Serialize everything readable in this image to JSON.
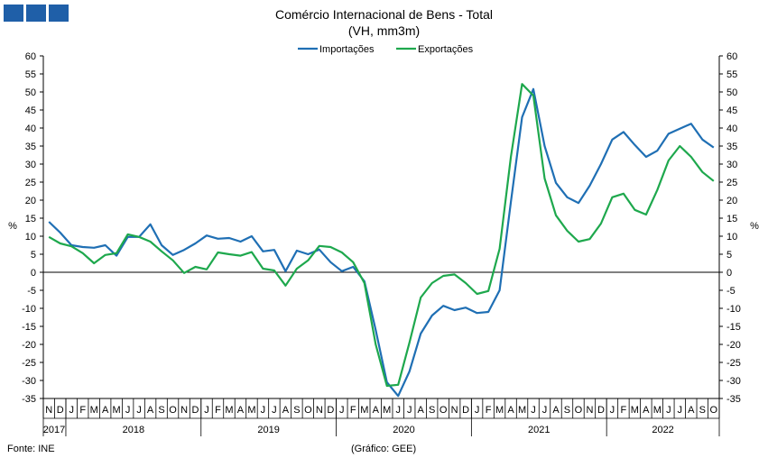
{
  "logo": {
    "color": "#1f5fa8"
  },
  "chart_data": {
    "type": "line",
    "title": "Comércio Internacional de Bens - Total",
    "subtitle": "(VH, mm3m)",
    "ylabel_left": "%",
    "ylabel_right": "%",
    "ylim": [
      -35,
      60
    ],
    "yticks": [
      60,
      55,
      50,
      45,
      40,
      35,
      30,
      25,
      20,
      15,
      10,
      5,
      0,
      -5,
      -10,
      -15,
      -20,
      -25,
      -30,
      -35
    ],
    "month_labels": [
      "N",
      "D",
      "J",
      "F",
      "M",
      "A",
      "M",
      "J",
      "J",
      "A",
      "S",
      "O",
      "N",
      "D",
      "J",
      "F",
      "M",
      "A",
      "M",
      "J",
      "J",
      "A",
      "S",
      "O",
      "N",
      "D",
      "J",
      "F",
      "M",
      "A",
      "M",
      "J",
      "J",
      "A",
      "S",
      "O",
      "N",
      "D",
      "J",
      "F",
      "M",
      "A",
      "M",
      "J",
      "J",
      "A",
      "S",
      "O",
      "N",
      "D",
      "J",
      "F",
      "M",
      "A",
      "M",
      "J",
      "J",
      "A",
      "S",
      "O"
    ],
    "years": [
      {
        "label": "2017",
        "start": 0,
        "end": 2
      },
      {
        "label": "2018",
        "start": 2,
        "end": 14
      },
      {
        "label": "2019",
        "start": 14,
        "end": 26
      },
      {
        "label": "2020",
        "start": 26,
        "end": 38
      },
      {
        "label": "2021",
        "start": 38,
        "end": 50
      },
      {
        "label": "2022",
        "start": 50,
        "end": 60
      }
    ],
    "series": [
      {
        "name": "Importações",
        "color": "#1f6fb4",
        "values": [
          14.0,
          11.0,
          7.5,
          7.0,
          6.8,
          7.5,
          4.6,
          9.8,
          9.8,
          13.3,
          7.5,
          4.8,
          6.2,
          8.0,
          10.2,
          9.3,
          9.5,
          8.5,
          10.0,
          5.8,
          6.2,
          0.3,
          6.0,
          5.0,
          6.3,
          2.8,
          0.3,
          1.5,
          -2.5,
          -16.0,
          -30.5,
          -34.3,
          -27.5,
          -17.0,
          -12.0,
          -9.3,
          -10.5,
          -9.8,
          -11.3,
          -11.0,
          -5.0,
          19.5,
          43.0,
          50.8,
          35.0,
          24.8,
          20.8,
          19.2,
          24.0,
          30.0,
          36.8,
          38.9,
          35.3,
          32.0,
          33.7,
          38.4,
          39.8,
          41.2,
          36.8,
          34.6
        ]
      },
      {
        "name": "Exportações",
        "color": "#1ea84d",
        "values": [
          9.8,
          8.0,
          7.2,
          5.3,
          2.5,
          4.8,
          5.3,
          10.5,
          9.8,
          8.5,
          5.8,
          3.3,
          -0.2,
          1.5,
          0.8,
          5.5,
          5.0,
          4.6,
          5.6,
          1.0,
          0.5,
          -3.7,
          1.0,
          3.3,
          7.3,
          7.0,
          5.5,
          2.8,
          -3.0,
          -20.0,
          -31.5,
          -31.2,
          -19.5,
          -7.0,
          -3.0,
          -1.0,
          -0.6,
          -3.0,
          -6.0,
          -5.2,
          6.5,
          32.0,
          52.2,
          49.0,
          26.0,
          15.8,
          11.5,
          8.5,
          9.2,
          13.5,
          20.8,
          21.8,
          17.3,
          16.0,
          22.8,
          31.0,
          35.0,
          32.0,
          27.8,
          25.3
        ]
      }
    ]
  },
  "footer": {
    "source": "Fonte: INE",
    "credit": "(Gráfico: GEE)"
  }
}
